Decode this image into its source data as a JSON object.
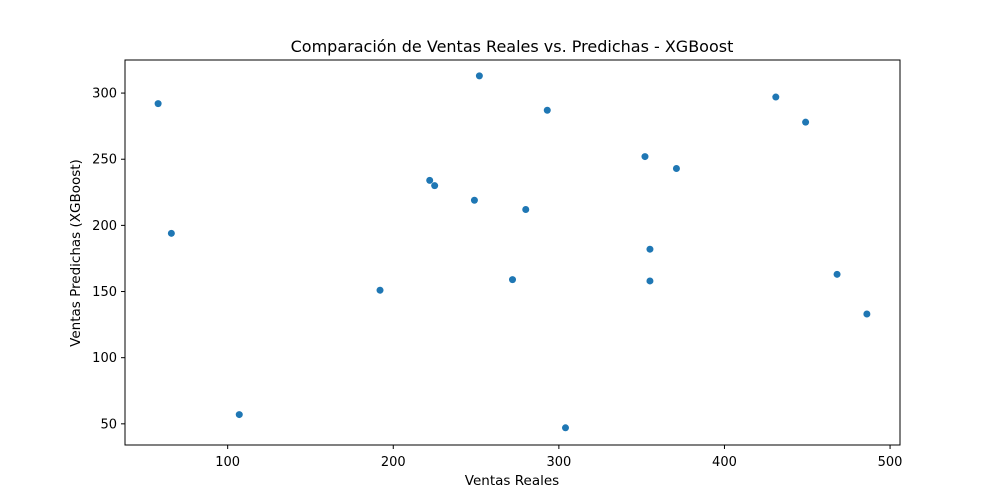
{
  "chart_data": {
    "type": "scatter",
    "title": "Comparación de Ventas Reales vs. Predichas - XGBoost",
    "xlabel": "Ventas Reales",
    "ylabel": "Ventas Predichas (XGBoost)",
    "xlim": [
      38,
      506
    ],
    "ylim": [
      34,
      325
    ],
    "xticks": [
      100,
      200,
      300,
      400,
      500
    ],
    "yticks": [
      50,
      100,
      150,
      200,
      250,
      300
    ],
    "grid": false,
    "marker_color": "#1f77b4",
    "points": [
      {
        "x": 58,
        "y": 292
      },
      {
        "x": 66,
        "y": 194
      },
      {
        "x": 107,
        "y": 57
      },
      {
        "x": 192,
        "y": 151
      },
      {
        "x": 222,
        "y": 234
      },
      {
        "x": 225,
        "y": 230
      },
      {
        "x": 249,
        "y": 219
      },
      {
        "x": 252,
        "y": 313
      },
      {
        "x": 272,
        "y": 159
      },
      {
        "x": 280,
        "y": 212
      },
      {
        "x": 293,
        "y": 287
      },
      {
        "x": 304,
        "y": 47
      },
      {
        "x": 352,
        "y": 252
      },
      {
        "x": 355,
        "y": 182
      },
      {
        "x": 355,
        "y": 158
      },
      {
        "x": 371,
        "y": 243
      },
      {
        "x": 431,
        "y": 297
      },
      {
        "x": 449,
        "y": 278
      },
      {
        "x": 468,
        "y": 163
      },
      {
        "x": 486,
        "y": 133
      }
    ]
  }
}
